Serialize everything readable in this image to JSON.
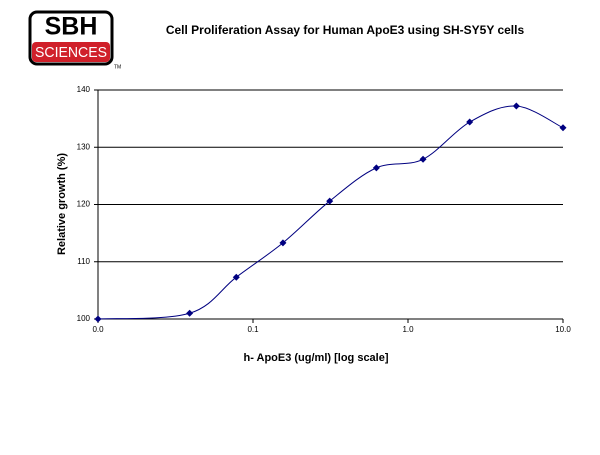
{
  "logo": {
    "name": "SBH",
    "sub": "SCIENCES",
    "mark": "TM"
  },
  "chart_data": {
    "type": "line",
    "title": "Cell Proliferation Assay for Human ApoE3 using SH-SY5Y cells",
    "x_label": "h- ApoE3 (ug/ml) [log scale]",
    "y_label": "Relative growth (%)",
    "x": [
      0.01,
      0.039,
      0.078,
      0.156,
      0.3125,
      0.625,
      1.25,
      2.5,
      5,
      10
    ],
    "series": [
      {
        "name": "Relative growth",
        "color": "#000080",
        "values": [
          100,
          101,
          107.3,
          113.3,
          120.6,
          126.4,
          127.9,
          134.4,
          137.2,
          133.4
        ]
      }
    ],
    "xlim": [
      0.01,
      10
    ],
    "xlog": true,
    "xticks": [
      {
        "value": 0.01,
        "label": "0.0"
      },
      0.1,
      {
        "value": 1,
        "label": "1.0"
      },
      {
        "value": 10,
        "label": "10.0"
      }
    ],
    "ylim": [
      100,
      140
    ],
    "yticks": [
      100,
      110,
      120,
      130,
      140
    ],
    "grid": true
  }
}
